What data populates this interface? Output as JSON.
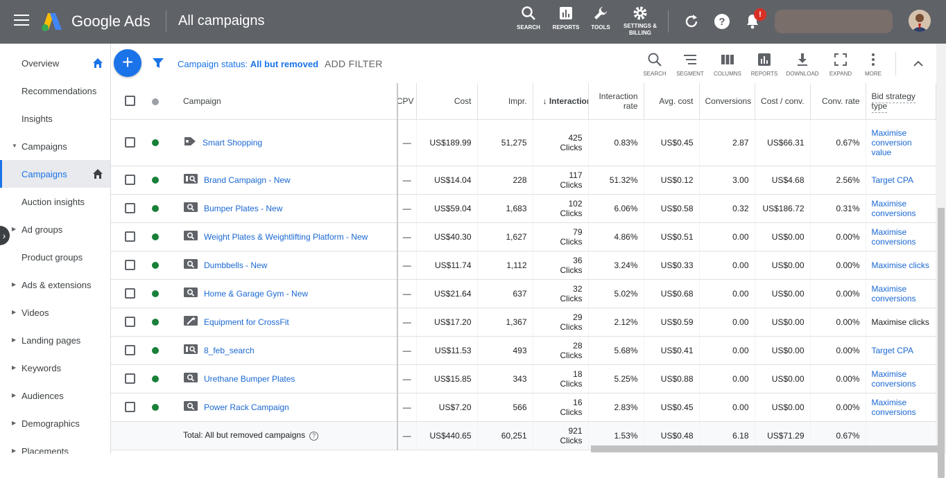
{
  "app": {
    "brand": "Google Ads",
    "page_title": "All campaigns"
  },
  "header_buttons": [
    {
      "icon": "search-icon",
      "label": "SEARCH"
    },
    {
      "icon": "reports-icon",
      "label": "REPORTS"
    },
    {
      "icon": "wrench-icon",
      "label": "TOOLS"
    },
    {
      "icon": "gear-icon",
      "label": "SETTINGS & BILLING"
    }
  ],
  "notification_badge": "!",
  "sidebar": {
    "items": [
      {
        "label": "Overview"
      },
      {
        "label": "Recommendations"
      },
      {
        "label": "Insights"
      },
      {
        "label": "Campaigns"
      },
      {
        "label": "Campaigns"
      },
      {
        "label": "Auction insights"
      },
      {
        "label": "Ad groups"
      },
      {
        "label": "Product groups"
      },
      {
        "label": "Ads & extensions"
      },
      {
        "label": "Videos"
      },
      {
        "label": "Landing pages"
      },
      {
        "label": "Keywords"
      },
      {
        "label": "Audiences"
      },
      {
        "label": "Demographics"
      },
      {
        "label": "Placements"
      }
    ]
  },
  "filter": {
    "prefix": "Campaign status: ",
    "value": "All but removed",
    "add_filter": "ADD FILTER"
  },
  "toolbar": [
    {
      "icon": "search-icon",
      "label": "SEARCH"
    },
    {
      "icon": "segment-icon",
      "label": "SEGMENT"
    },
    {
      "icon": "columns-icon",
      "label": "COLUMNS"
    },
    {
      "icon": "reports-icon",
      "label": "REPORTS"
    },
    {
      "icon": "download-icon",
      "label": "DOWNLOAD"
    },
    {
      "icon": "expand-icon",
      "label": "EXPAND"
    },
    {
      "icon": "more-icon",
      "label": "MORE"
    }
  ],
  "table": {
    "headers": {
      "campaign": "Campaign",
      "cpv": "CPV",
      "cost": "Cost",
      "impr": "Impr.",
      "interactions": "Interactions",
      "interaction_rate": "Interaction rate",
      "avg_cost": "Avg. cost",
      "conversions": "Conversions",
      "cost_conv": "Cost / conv.",
      "conv_rate": "Conv. rate",
      "bid_strategy": "Bid strategy type"
    },
    "rows": [
      {
        "icon": "shopping-tag-icon",
        "campaign": "Smart Shopping",
        "cpv": "—",
        "cost": "US$189.99",
        "impr": "51,275",
        "interactions": "425",
        "interactions_unit": "Clicks",
        "interaction_rate": "0.83%",
        "avg_cost": "US$0.45",
        "conversions": "2.87",
        "cost_conv": "US$66.31",
        "conv_rate": "0.67%",
        "bid_strategy": "Maximise conversion value",
        "bid_link": true
      },
      {
        "icon": "search-campaign-icon",
        "campaign": "Brand Campaign - New",
        "cpv": "—",
        "cost": "US$14.04",
        "impr": "228",
        "interactions": "117",
        "interactions_unit": "Clicks",
        "interaction_rate": "51.32%",
        "avg_cost": "US$0.12",
        "conversions": "3.00",
        "cost_conv": "US$4.68",
        "conv_rate": "2.56%",
        "bid_strategy": "Target CPA",
        "bid_link": true
      },
      {
        "icon": "search-icon",
        "campaign": "Bumper Plates - New",
        "cpv": "—",
        "cost": "US$59.04",
        "impr": "1,683",
        "interactions": "102",
        "interactions_unit": "Clicks",
        "interaction_rate": "6.06%",
        "avg_cost": "US$0.58",
        "conversions": "0.32",
        "cost_conv": "US$186.72",
        "conv_rate": "0.31%",
        "bid_strategy": "Maximise conversions",
        "bid_link": true
      },
      {
        "icon": "search-icon",
        "campaign": "Weight Plates & Weightlifting Platform - New",
        "cpv": "—",
        "cost": "US$40.30",
        "impr": "1,627",
        "interactions": "79",
        "interactions_unit": "Clicks",
        "interaction_rate": "4.86%",
        "avg_cost": "US$0.51",
        "conversions": "0.00",
        "cost_conv": "US$0.00",
        "conv_rate": "0.00%",
        "bid_strategy": "Maximise conversions",
        "bid_link": true
      },
      {
        "icon": "search-icon",
        "campaign": "Dumbbells - New",
        "cpv": "—",
        "cost": "US$11.74",
        "impr": "1,112",
        "interactions": "36",
        "interactions_unit": "Clicks",
        "interaction_rate": "3.24%",
        "avg_cost": "US$0.33",
        "conversions": "0.00",
        "cost_conv": "US$0.00",
        "conv_rate": "0.00%",
        "bid_strategy": "Maximise clicks",
        "bid_link": true
      },
      {
        "icon": "search-icon",
        "campaign": "Home & Garage Gym - New",
        "cpv": "—",
        "cost": "US$21.64",
        "impr": "637",
        "interactions": "32",
        "interactions_unit": "Clicks",
        "interaction_rate": "5.02%",
        "avg_cost": "US$0.68",
        "conversions": "0.00",
        "cost_conv": "US$0.00",
        "conv_rate": "0.00%",
        "bid_strategy": "Maximise conversions",
        "bid_link": true
      },
      {
        "icon": "magic-wand-icon",
        "campaign": "Equipment for CrossFit",
        "cpv": "—",
        "cost": "US$17.20",
        "impr": "1,367",
        "interactions": "29",
        "interactions_unit": "Clicks",
        "interaction_rate": "2.12%",
        "avg_cost": "US$0.59",
        "conversions": "0.00",
        "cost_conv": "US$0.00",
        "conv_rate": "0.00%",
        "bid_strategy": "Maximise clicks",
        "bid_link": false
      },
      {
        "icon": "search-campaign-icon",
        "campaign": "8_feb_search",
        "cpv": "—",
        "cost": "US$11.53",
        "impr": "493",
        "interactions": "28",
        "interactions_unit": "Clicks",
        "interaction_rate": "5.68%",
        "avg_cost": "US$0.41",
        "conversions": "0.00",
        "cost_conv": "US$0.00",
        "conv_rate": "0.00%",
        "bid_strategy": "Target CPA",
        "bid_link": true
      },
      {
        "icon": "search-icon",
        "campaign": "Urethane Bumper Plates",
        "cpv": "—",
        "cost": "US$15.85",
        "impr": "343",
        "interactions": "18",
        "interactions_unit": "Clicks",
        "interaction_rate": "5.25%",
        "avg_cost": "US$0.88",
        "conversions": "0.00",
        "cost_conv": "US$0.00",
        "conv_rate": "0.00%",
        "bid_strategy": "Maximise conversions",
        "bid_link": true
      },
      {
        "icon": "search-icon",
        "campaign": "Power Rack Campaign",
        "cpv": "—",
        "cost": "US$7.20",
        "impr": "566",
        "interactions": "16",
        "interactions_unit": "Clicks",
        "interaction_rate": "2.83%",
        "avg_cost": "US$0.45",
        "conversions": "0.00",
        "cost_conv": "US$0.00",
        "conv_rate": "0.00%",
        "bid_strategy": "Maximise conversions",
        "bid_link": true
      }
    ],
    "total": {
      "label": "Total: All but removed campaigns",
      "cpv": "—",
      "cost": "US$440.65",
      "impr": "60,251",
      "interactions": "921",
      "interactions_unit": "Clicks",
      "interaction_rate": "1.53%",
      "avg_cost": "US$0.48",
      "conversions": "6.18",
      "cost_conv": "US$71.29",
      "conv_rate": "0.67%",
      "bid_strategy": ""
    }
  },
  "colors": {
    "header_bg": "#5f6368",
    "accent": "#1a73e8",
    "status_enabled": "#188038"
  }
}
